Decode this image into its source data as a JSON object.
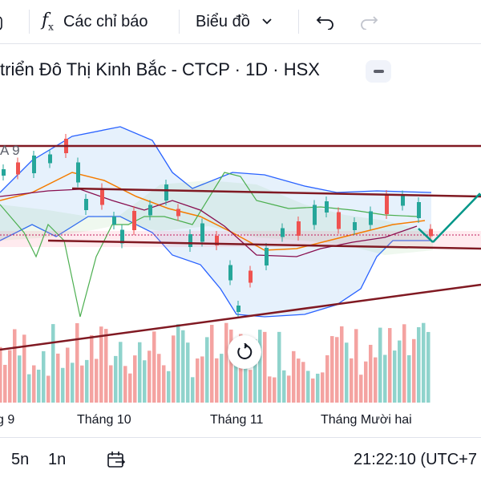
{
  "toolbar": {
    "indicators_label": "Các chỉ báo",
    "chart_type_label": "Biểu đồ"
  },
  "header": {
    "title": "triển Đô Thị Kinh Bắc - CTCP · 1D · HSX"
  },
  "indicator_label": "A 9",
  "x_axis": {
    "labels": [
      "g 9",
      "Tháng 10",
      "Tháng 11",
      "Tháng Mười hai"
    ]
  },
  "bottom_bar": {
    "range_5y": "5n",
    "range_1y": "1n",
    "time": "21:22:10 (UTC+7"
  },
  "colors": {
    "up": "#26a69a",
    "down": "#ef5350",
    "trendline": "#801922",
    "bollinger": "#2962ff",
    "ma": "#f57c00"
  }
}
